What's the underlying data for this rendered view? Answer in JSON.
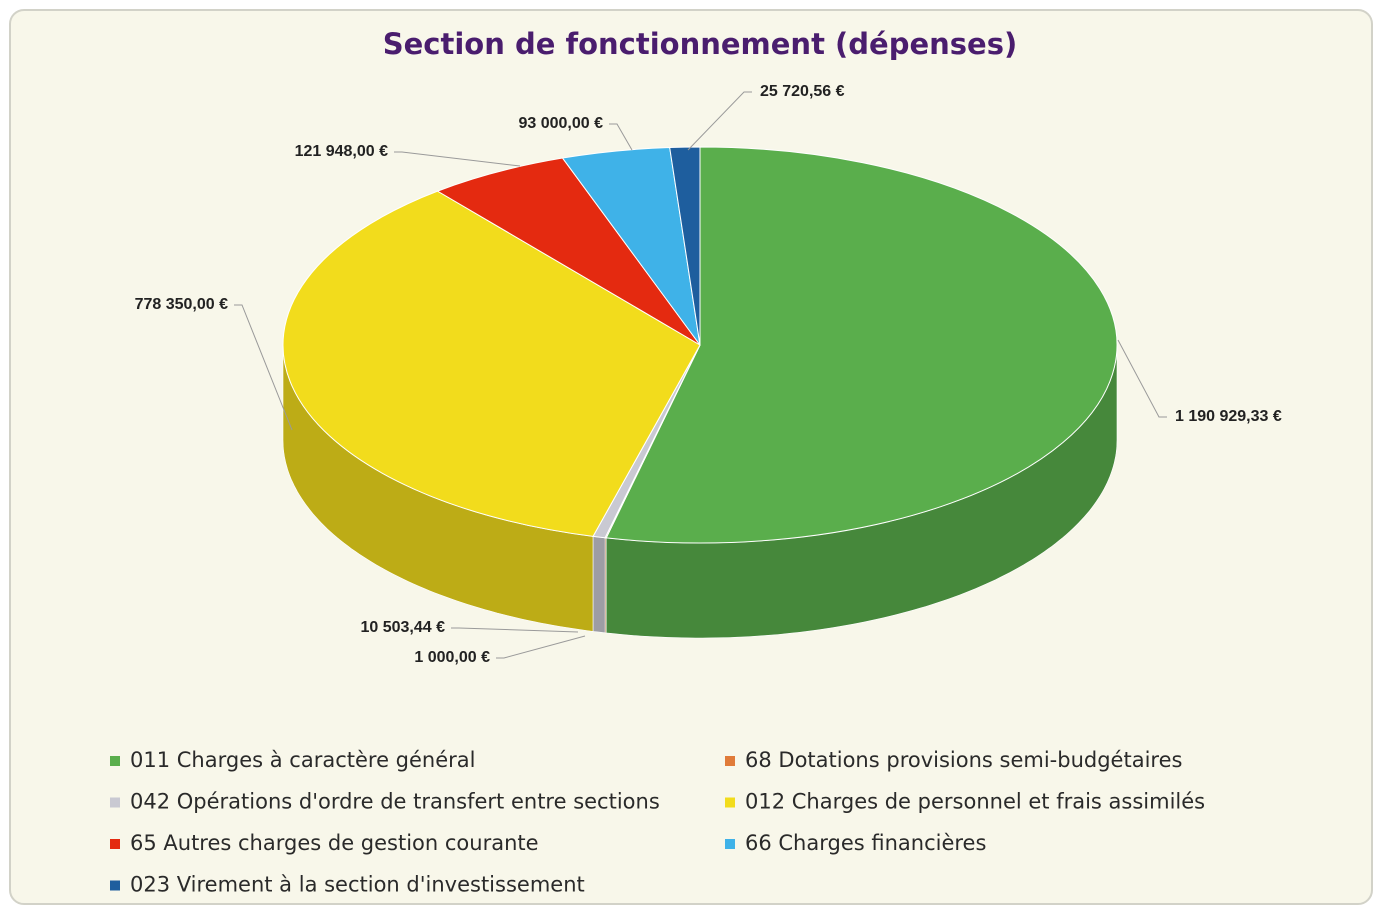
{
  "chart_data": {
    "type": "pie",
    "title": "Section de fonctionnement (dépenses)",
    "categories": [
      "011 Charges à caractère général",
      "68 Dotations provisions semi-budgétaires",
      "042 Opérations d'ordre de transfert entre sections",
      "012 Charges de personnel et frais assimilés",
      "65 Autres charges de gestion courante",
      "66 Charges financières",
      "023 Virement à la section d'investissement"
    ],
    "values": [
      1190929.33,
      1000.0,
      10503.44,
      778350.0,
      121948.0,
      93000.0,
      25720.56
    ],
    "value_labels": [
      "1 190 929,33  €",
      "1 000,00  €",
      "10 503,44  €",
      "778 350,00  €",
      "121 948,00  €",
      "93 000,00  €",
      "25 720,56  €"
    ],
    "colors": [
      "#5aae4c",
      "#e07b39",
      "#c9c9d2",
      "#f2dc1c",
      "#e42a10",
      "#3fb2e8",
      "#1e5e9e"
    ]
  }
}
